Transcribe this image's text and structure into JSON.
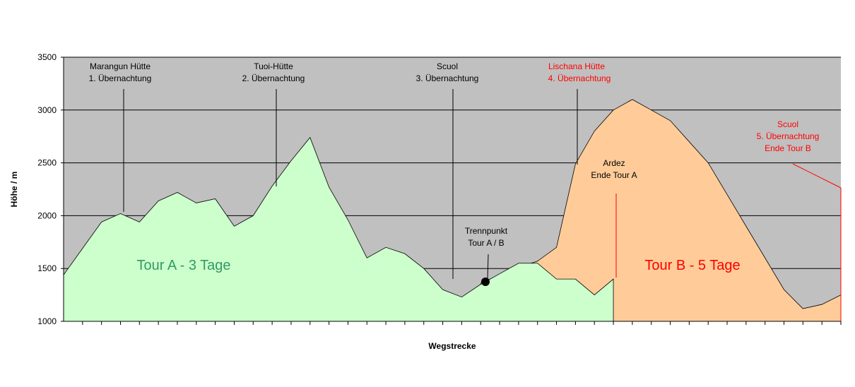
{
  "chart_data": {
    "type": "area",
    "title": "",
    "xlabel": "Wegstrecke",
    "ylabel": "Höhe / m",
    "ylim": [
      1000,
      3500
    ],
    "yticks": [
      1000,
      1500,
      2000,
      2500,
      3000,
      3500
    ],
    "grid": true,
    "x_count": 41,
    "colors": {
      "plot_bg": "#c0c0c0",
      "tour_a_fill": "#ccffcc",
      "tour_b_fill": "#ffcc99",
      "red": "#ff0000",
      "green": "#339966"
    },
    "series": [
      {
        "name": "Tour A - 3 Tage",
        "x": [
          0,
          1,
          2,
          3,
          4,
          5,
          6,
          7,
          8,
          9,
          10,
          11,
          12,
          13,
          14,
          15,
          16,
          17,
          18,
          19,
          20,
          21,
          22,
          23,
          24,
          25,
          26,
          27,
          28,
          29
        ],
        "values": [
          1440,
          1690,
          1940,
          2020,
          1940,
          2140,
          2220,
          2120,
          2160,
          1900,
          2000,
          2280,
          2520,
          2740,
          2270,
          1960,
          1600,
          1700,
          1640,
          1500,
          1300,
          1230,
          1350,
          1450,
          1550,
          1550,
          1400,
          1400,
          1250,
          1400
        ]
      },
      {
        "name": "Tour B - 5 Tage",
        "x": [
          22,
          23,
          24,
          25,
          26,
          27,
          28,
          29,
          30,
          31,
          32,
          33,
          34,
          35,
          36,
          37,
          38,
          39,
          40,
          41
        ],
        "values": [
          1360,
          1440,
          1510,
          1570,
          1700,
          2490,
          2800,
          3000,
          3100,
          3000,
          2900,
          2700,
          2500,
          2200,
          1900,
          1600,
          1300,
          1120,
          1160,
          1250
        ]
      }
    ],
    "annotations": {
      "marangun": {
        "line1": "Marangun Hütte",
        "line2": "1. Übernachtung"
      },
      "tuoi": {
        "line1": "Tuoi-Hütte",
        "line2": "2. Übernachtung"
      },
      "scuol3": {
        "line1": "Scuol",
        "line2": "3. Übernachtung"
      },
      "lischana": {
        "line1": "Lischana Hütte",
        "line2": "4. Übernachtung"
      },
      "scuol5": {
        "line1": "Scuol",
        "line2": "5. Übernachtung",
        "line3": "Ende Tour B"
      },
      "ardez": {
        "line1": "Ardez",
        "line2": "Ende Tour A"
      },
      "trennpunkt": {
        "line1": "Trennpunkt",
        "line2": "Tour A / B"
      },
      "tour_a": "Tour A - 3 Tage",
      "tour_b": "Tour B - 5 Tage"
    }
  }
}
